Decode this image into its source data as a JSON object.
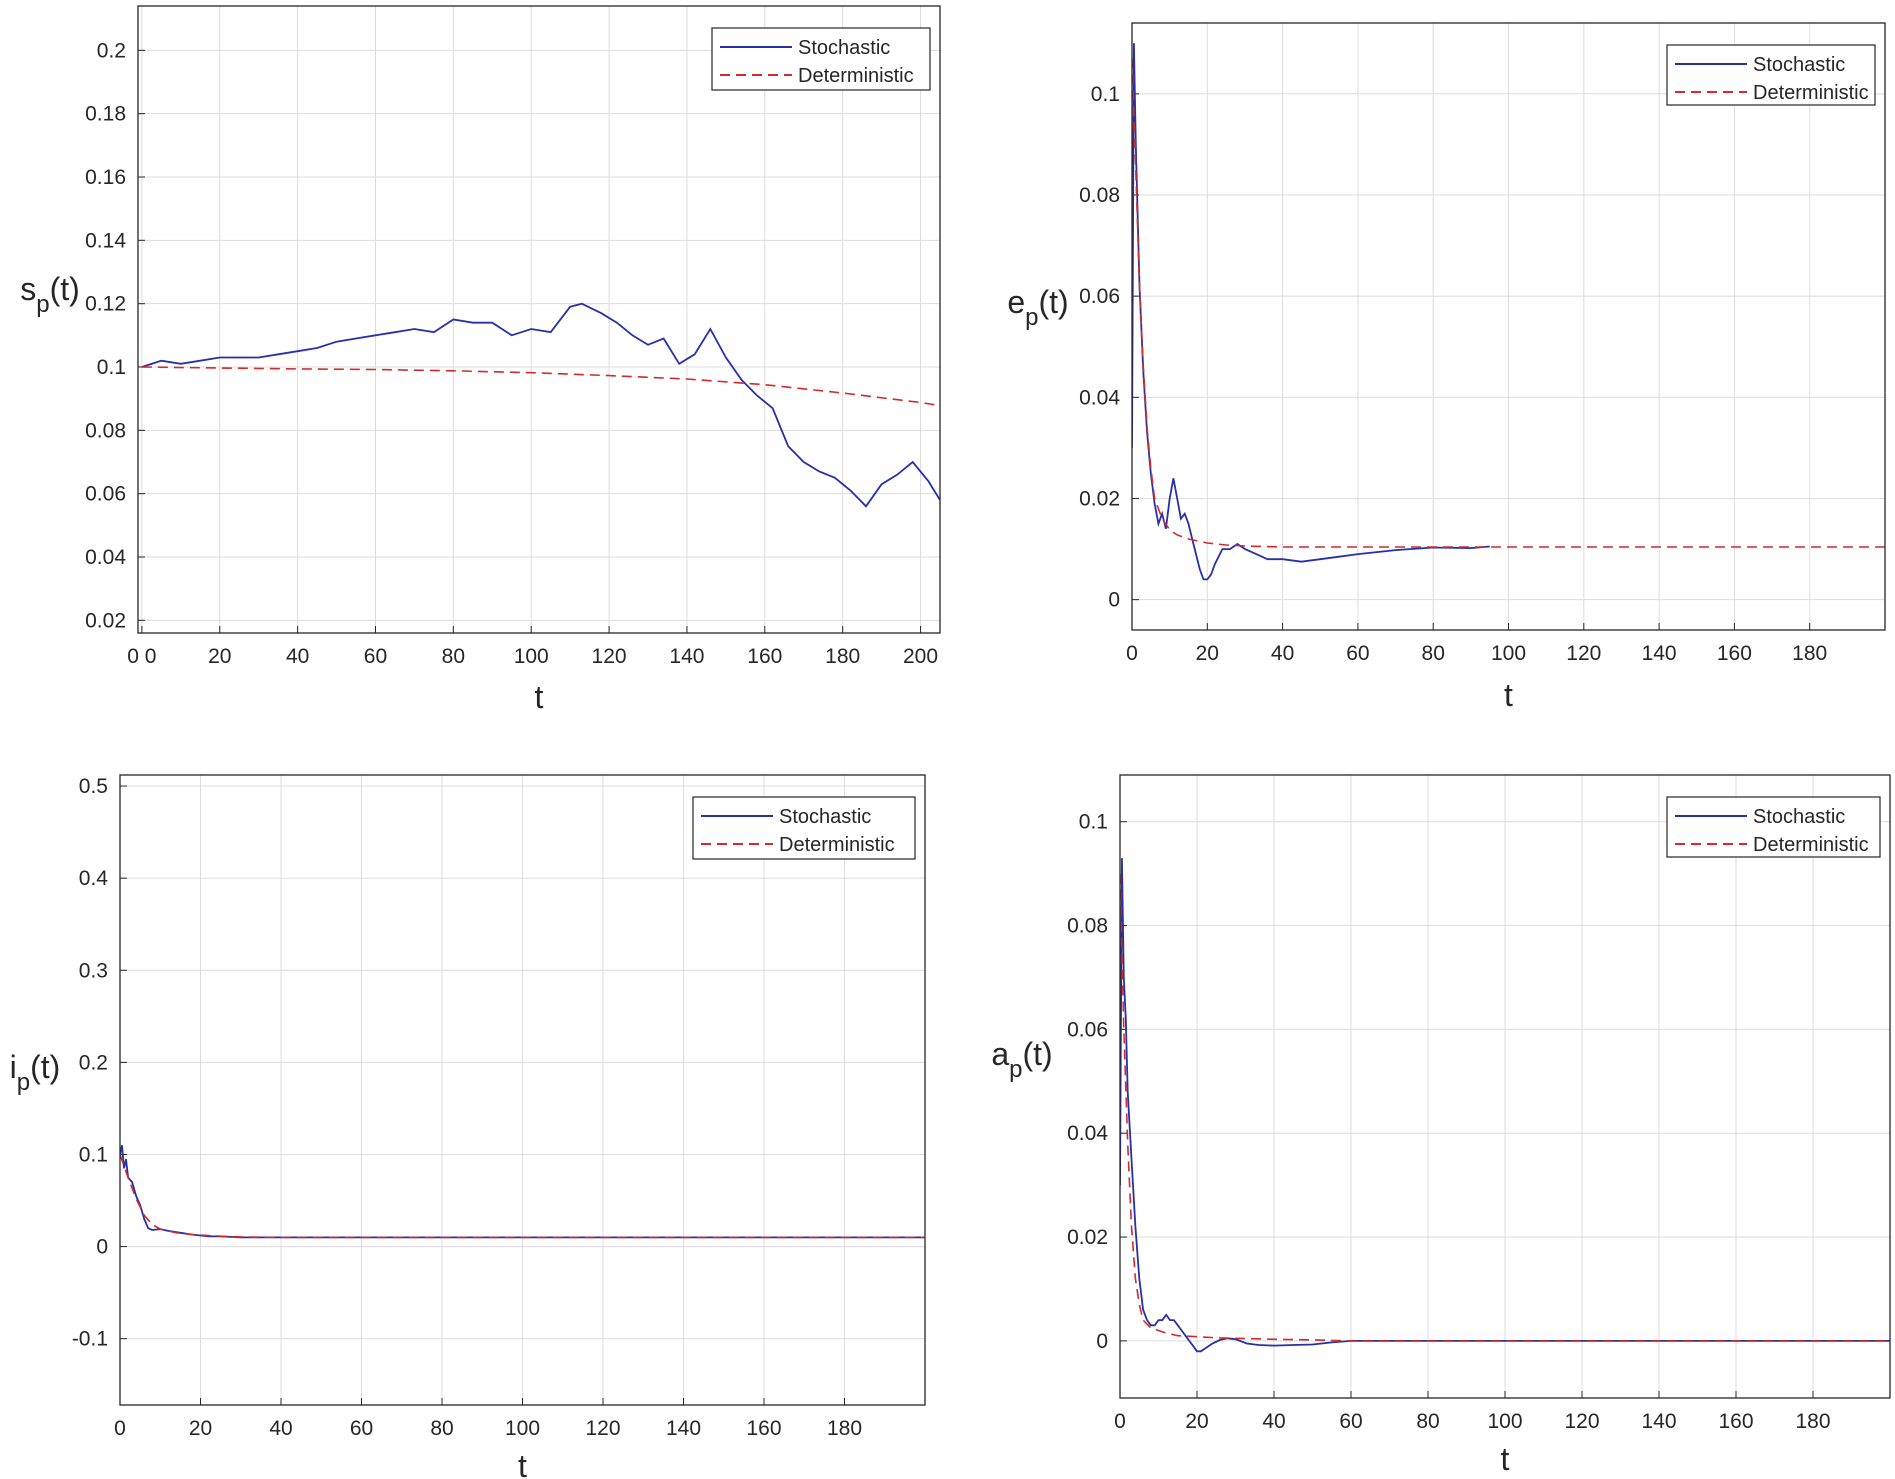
{
  "chart_data": [
    {
      "id": "sp",
      "type": "line",
      "ylabel_main": "s",
      "ylabel_sub": "p",
      "ylabel_tail": "(t)",
      "xlabel": "t",
      "xlim": [
        -1,
        205
      ],
      "ylim": [
        0.016,
        0.214
      ],
      "xticks": [
        0,
        20,
        40,
        60,
        80,
        100,
        120,
        140,
        160,
        180,
        200
      ],
      "xtick_labels": [
        "0 0",
        "20",
        "40",
        "60",
        "80",
        "100",
        "120",
        "140",
        "160",
        "180",
        "200"
      ],
      "yticks": [
        0.02,
        0.04,
        0.06,
        0.08,
        0.1,
        0.12,
        0.14,
        0.16,
        0.18,
        0.2
      ],
      "ytick_labels": [
        "0.02",
        "0.04",
        "0.06",
        "0.08",
        "0.1",
        "0.12",
        "0.14",
        "0.16",
        "0.18",
        "0.2"
      ],
      "grid": true,
      "legend_position": "top-right",
      "series": [
        {
          "name": "Stochastic",
          "color": "#2630a8",
          "style": "solid",
          "x": [
            0,
            5,
            10,
            15,
            20,
            25,
            30,
            35,
            40,
            45,
            50,
            55,
            60,
            65,
            70,
            75,
            80,
            85,
            90,
            95,
            100,
            105,
            110,
            113,
            118,
            122,
            126,
            130,
            134,
            138,
            142,
            146,
            150,
            154,
            158,
            162,
            166,
            170,
            174,
            178,
            182,
            186,
            190,
            194,
            198,
            202,
            205
          ],
          "y": [
            0.1,
            0.102,
            0.101,
            0.102,
            0.103,
            0.103,
            0.103,
            0.104,
            0.105,
            0.106,
            0.108,
            0.109,
            0.11,
            0.111,
            0.112,
            0.111,
            0.115,
            0.114,
            0.114,
            0.11,
            0.112,
            0.111,
            0.119,
            0.12,
            0.117,
            0.114,
            0.11,
            0.107,
            0.109,
            0.101,
            0.104,
            0.112,
            0.103,
            0.096,
            0.091,
            0.087,
            0.075,
            0.07,
            0.067,
            0.065,
            0.061,
            0.056,
            0.063,
            0.066,
            0.07,
            0.064,
            0.058
          ]
        },
        {
          "name": "Deterministic",
          "color": "#d42a2a",
          "style": "dashed",
          "x": [
            0,
            20,
            40,
            60,
            80,
            100,
            120,
            140,
            160,
            180,
            200,
            205
          ],
          "y": [
            0.1,
            0.0997,
            0.0994,
            0.0992,
            0.0988,
            0.0982,
            0.0973,
            0.0962,
            0.0944,
            0.0918,
            0.0888,
            0.0878
          ]
        }
      ]
    },
    {
      "id": "ep",
      "type": "line",
      "ylabel_main": "e",
      "ylabel_sub": "p",
      "ylabel_tail": "(t)",
      "xlabel": "t",
      "xlim": [
        0,
        200
      ],
      "ylim": [
        -0.006,
        0.114
      ],
      "xticks": [
        0,
        20,
        40,
        60,
        80,
        100,
        120,
        140,
        160,
        180
      ],
      "xtick_labels": [
        "0",
        "20",
        "40",
        "60",
        "80",
        "100",
        "120",
        "140",
        "160",
        "180"
      ],
      "yticks": [
        0,
        0.02,
        0.04,
        0.06,
        0.08,
        0.1
      ],
      "ytick_labels": [
        "0",
        "0.02",
        "0.04",
        "0.06",
        "0.08",
        "0.1"
      ],
      "grid": true,
      "legend_position": "top-right",
      "series": [
        {
          "name": "Stochastic",
          "color": "#2630a8",
          "style": "solid",
          "x": [
            0,
            0.5,
            1,
            2,
            3,
            4,
            5,
            6,
            7,
            8,
            9,
            10,
            11,
            12,
            13,
            14,
            15,
            16,
            17,
            18,
            19,
            20,
            21,
            22,
            24,
            26,
            28,
            30,
            33,
            36,
            40,
            45,
            50,
            55,
            60,
            70,
            80,
            90,
            95
          ],
          "y": [
            0.03,
            0.11,
            0.09,
            0.062,
            0.045,
            0.033,
            0.025,
            0.019,
            0.015,
            0.017,
            0.014,
            0.02,
            0.024,
            0.02,
            0.016,
            0.017,
            0.015,
            0.012,
            0.009,
            0.006,
            0.004,
            0.004,
            0.005,
            0.007,
            0.01,
            0.01,
            0.011,
            0.01,
            0.009,
            0.008,
            0.008,
            0.0075,
            0.008,
            0.0085,
            0.009,
            0.0098,
            0.0103,
            0.0102,
            0.0105
          ]
        },
        {
          "name": "Deterministic",
          "color": "#d42a2a",
          "style": "dashed",
          "x": [
            0,
            1,
            2,
            3,
            4,
            5,
            6,
            8,
            10,
            12,
            15,
            20,
            25,
            30,
            40,
            50,
            60,
            80,
            100,
            140,
            200
          ],
          "y": [
            0.107,
            0.085,
            0.062,
            0.046,
            0.034,
            0.026,
            0.02,
            0.016,
            0.0138,
            0.0128,
            0.012,
            0.0112,
            0.0108,
            0.0106,
            0.0104,
            0.0104,
            0.0104,
            0.0104,
            0.0104,
            0.0104,
            0.0104
          ]
        }
      ]
    },
    {
      "id": "ip",
      "type": "line",
      "ylabel_main": "i",
      "ylabel_sub": "p",
      "ylabel_tail": "(t)",
      "xlabel": "t",
      "xlim": [
        0,
        200
      ],
      "ylim": [
        -0.172,
        0.512
      ],
      "xticks": [
        0,
        20,
        40,
        60,
        80,
        100,
        120,
        140,
        160,
        180
      ],
      "xtick_labels": [
        "0",
        "20",
        "40",
        "60",
        "80",
        "100",
        "120",
        "140",
        "160",
        "180"
      ],
      "yticks": [
        -0.1,
        0,
        0.1,
        0.2,
        0.3,
        0.4,
        0.5
      ],
      "ytick_labels": [
        "-0.1",
        "0",
        "0.1",
        "0.2",
        "0.3",
        "0.4",
        "0.5"
      ],
      "grid": true,
      "legend_position": "top-right",
      "series": [
        {
          "name": "Stochastic",
          "color": "#2630a8",
          "style": "solid",
          "x": [
            0,
            0.5,
            1,
            1.5,
            2,
            3,
            4,
            5,
            6,
            7,
            8,
            10,
            12,
            15,
            18,
            22,
            25,
            30,
            40,
            60,
            100,
            200
          ],
          "y": [
            0.1,
            0.11,
            0.085,
            0.095,
            0.075,
            0.07,
            0.055,
            0.045,
            0.03,
            0.02,
            0.018,
            0.019,
            0.017,
            0.015,
            0.013,
            0.011,
            0.011,
            0.01,
            0.01,
            0.01,
            0.01,
            0.01
          ]
        },
        {
          "name": "Deterministic",
          "color": "#d42a2a",
          "style": "dashed",
          "x": [
            0,
            2,
            4,
            6,
            8,
            10,
            14,
            18,
            22,
            26,
            30,
            40,
            60,
            100,
            200
          ],
          "y": [
            0.1,
            0.075,
            0.052,
            0.034,
            0.024,
            0.019,
            0.015,
            0.013,
            0.012,
            0.011,
            0.0105,
            0.01,
            0.01,
            0.01,
            0.01
          ]
        }
      ]
    },
    {
      "id": "ap",
      "type": "line",
      "ylabel_main": "a",
      "ylabel_sub": "p",
      "ylabel_tail": "(t)",
      "xlabel": "t",
      "xlim": [
        0,
        200
      ],
      "ylim": [
        -0.011,
        0.109
      ],
      "xticks": [
        0,
        20,
        40,
        60,
        80,
        100,
        120,
        140,
        160,
        180
      ],
      "xtick_labels": [
        "0",
        "20",
        "40",
        "60",
        "80",
        "100",
        "120",
        "140",
        "160",
        "180"
      ],
      "yticks": [
        0,
        0.02,
        0.04,
        0.06,
        0.08,
        0.1
      ],
      "ytick_labels": [
        "0",
        "0.02",
        "0.04",
        "0.06",
        "0.08",
        "0.1"
      ],
      "grid": true,
      "legend_position": "top-right",
      "series": [
        {
          "name": "Stochastic",
          "color": "#2630a8",
          "style": "solid",
          "x": [
            0,
            0.5,
            1,
            1.5,
            2,
            3,
            4,
            5,
            6,
            7,
            8,
            9,
            10,
            11,
            12,
            13,
            14,
            15,
            16,
            17,
            18,
            19,
            20,
            21,
            22,
            24,
            26,
            28,
            30,
            33,
            36,
            40,
            45,
            50,
            55,
            60,
            80,
            100,
            200
          ],
          "y": [
            0.03,
            0.093,
            0.07,
            0.062,
            0.048,
            0.035,
            0.022,
            0.012,
            0.006,
            0.004,
            0.003,
            0.003,
            0.004,
            0.004,
            0.005,
            0.004,
            0.004,
            0.003,
            0.002,
            0.001,
            0.0,
            -0.001,
            -0.002,
            -0.002,
            -0.0015,
            -0.0005,
            0.0002,
            0.0005,
            0.0003,
            -0.0005,
            -0.0008,
            -0.0009,
            -0.0008,
            -0.0007,
            -0.0003,
            0.0,
            0.0,
            0.0,
            0.0
          ]
        },
        {
          "name": "Deterministic",
          "color": "#d42a2a",
          "style": "dashed",
          "x": [
            0,
            1,
            2,
            3,
            4,
            5,
            6,
            8,
            10,
            12,
            15,
            20,
            25,
            30,
            40,
            50,
            60,
            100,
            200
          ],
          "y": [
            0.09,
            0.06,
            0.038,
            0.022,
            0.012,
            0.007,
            0.004,
            0.0025,
            0.002,
            0.0015,
            0.001,
            0.0008,
            0.0006,
            0.0005,
            0.0003,
            0.0002,
            0.0,
            0.0,
            0.0
          ]
        }
      ]
    }
  ]
}
